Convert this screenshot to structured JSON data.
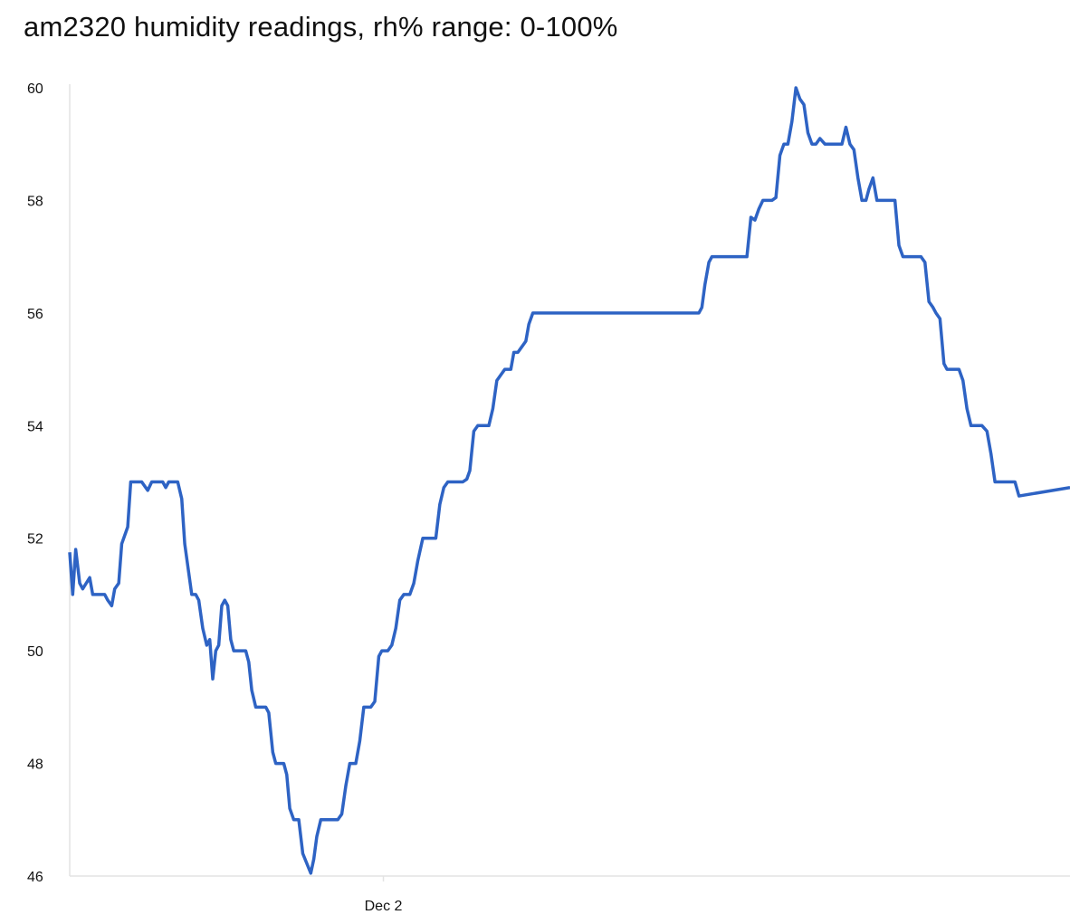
{
  "title": "am2320 humidity readings, rh% range: 0-100%",
  "chart_data": {
    "type": "line",
    "title": "am2320 humidity readings, rh% range: 0-100%",
    "xlabel": "",
    "ylabel": "",
    "ylim": [
      46,
      60
    ],
    "xlim": [
      0,
      1000
    ],
    "y_ticks": [
      46,
      48,
      50,
      52,
      54,
      56,
      58,
      60
    ],
    "x_ticks": [
      {
        "value": 313.6,
        "label": "Dec 2"
      }
    ],
    "grid": false,
    "legend": "none",
    "line_color": "#2e63c4",
    "axis_color": "#e3e3e3",
    "series": [
      {
        "values": [
          [
            0,
            51.75
          ],
          [
            3,
            51.0
          ],
          [
            6,
            51.8
          ],
          [
            10,
            51.2
          ],
          [
            13,
            51.1
          ],
          [
            20,
            51.3
          ],
          [
            23,
            51.0
          ],
          [
            35,
            51.0
          ],
          [
            38,
            50.9
          ],
          [
            42,
            50.8
          ],
          [
            45,
            51.1
          ],
          [
            49,
            51.2
          ],
          [
            52,
            51.9
          ],
          [
            58,
            52.2
          ],
          [
            61,
            53.0
          ],
          [
            72,
            53.0
          ],
          [
            78,
            52.85
          ],
          [
            82,
            53.0
          ],
          [
            93,
            53.0
          ],
          [
            96,
            52.9
          ],
          [
            99,
            53.0
          ],
          [
            108,
            53.0
          ],
          [
            112,
            52.7
          ],
          [
            115,
            51.9
          ],
          [
            122,
            51.0
          ],
          [
            126,
            51.0
          ],
          [
            129,
            50.9
          ],
          [
            133,
            50.4
          ],
          [
            137,
            50.1
          ],
          [
            140,
            50.2
          ],
          [
            143,
            49.5
          ],
          [
            146,
            50.0
          ],
          [
            149,
            50.1
          ],
          [
            152,
            50.8
          ],
          [
            155,
            50.9
          ],
          [
            158,
            50.8
          ],
          [
            161,
            50.2
          ],
          [
            164,
            50.0
          ],
          [
            176,
            50.0
          ],
          [
            179,
            49.8
          ],
          [
            182,
            49.3
          ],
          [
            186,
            49.0
          ],
          [
            196,
            49.0
          ],
          [
            199,
            48.9
          ],
          [
            203,
            48.2
          ],
          [
            206,
            48.0
          ],
          [
            214,
            48.0
          ],
          [
            217,
            47.8
          ],
          [
            220,
            47.2
          ],
          [
            224,
            47.0
          ],
          [
            229,
            47.0
          ],
          [
            233,
            46.4
          ],
          [
            241,
            46.05
          ],
          [
            244,
            46.3
          ],
          [
            247,
            46.7
          ],
          [
            251,
            47.0
          ],
          [
            268,
            47.0
          ],
          [
            272,
            47.1
          ],
          [
            276,
            47.6
          ],
          [
            280,
            48.0
          ],
          [
            286,
            48.0
          ],
          [
            290,
            48.4
          ],
          [
            294,
            49.0
          ],
          [
            301,
            49.0
          ],
          [
            305,
            49.1
          ],
          [
            309,
            49.9
          ],
          [
            312,
            50.0
          ],
          [
            318,
            50.0
          ],
          [
            322,
            50.1
          ],
          [
            326,
            50.4
          ],
          [
            330,
            50.9
          ],
          [
            334,
            51.0
          ],
          [
            340,
            51.0
          ],
          [
            344,
            51.2
          ],
          [
            348,
            51.6
          ],
          [
            353,
            52.0
          ],
          [
            361,
            52.0
          ],
          [
            366,
            52.0
          ],
          [
            370,
            52.6
          ],
          [
            374,
            52.9
          ],
          [
            378,
            53.0
          ],
          [
            393,
            53.0
          ],
          [
            397,
            53.05
          ],
          [
            400,
            53.2
          ],
          [
            404,
            53.9
          ],
          [
            408,
            54.0
          ],
          [
            419,
            54.0
          ],
          [
            423,
            54.3
          ],
          [
            427,
            54.8
          ],
          [
            431,
            54.9
          ],
          [
            435,
            55.0
          ],
          [
            441,
            55.0
          ],
          [
            444,
            55.3
          ],
          [
            448,
            55.3
          ],
          [
            452,
            55.4
          ],
          [
            456,
            55.5
          ],
          [
            459,
            55.8
          ],
          [
            463,
            56.0
          ],
          [
            527,
            56.0
          ],
          [
            572,
            56.0
          ],
          [
            629,
            56.0
          ],
          [
            632,
            56.1
          ],
          [
            635,
            56.5
          ],
          [
            639,
            56.9
          ],
          [
            642,
            57.0
          ],
          [
            654,
            57.0
          ],
          [
            677,
            57.0
          ],
          [
            681,
            57.7
          ],
          [
            685,
            57.65
          ],
          [
            689,
            57.85
          ],
          [
            693,
            58.0
          ],
          [
            702,
            58.0
          ],
          [
            706,
            58.05
          ],
          [
            710,
            58.8
          ],
          [
            714,
            59.0
          ],
          [
            718,
            59.0
          ],
          [
            722,
            59.4
          ],
          [
            726,
            60.0
          ],
          [
            730,
            59.8
          ],
          [
            734,
            59.7
          ],
          [
            738,
            59.2
          ],
          [
            742,
            59.0
          ],
          [
            746,
            59.0
          ],
          [
            750,
            59.1
          ],
          [
            755,
            59.0
          ],
          [
            763,
            59.0
          ],
          [
            772,
            59.0
          ],
          [
            776,
            59.3
          ],
          [
            780,
            59.0
          ],
          [
            784,
            58.9
          ],
          [
            788,
            58.4
          ],
          [
            792,
            58.0
          ],
          [
            796,
            58.0
          ],
          [
            799,
            58.2
          ],
          [
            803,
            58.4
          ],
          [
            807,
            58.0
          ],
          [
            822,
            58.0
          ],
          [
            825,
            58.0
          ],
          [
            829,
            57.2
          ],
          [
            833,
            57.0
          ],
          [
            851,
            57.0
          ],
          [
            855,
            56.9
          ],
          [
            859,
            56.2
          ],
          [
            863,
            56.1
          ],
          [
            866,
            56.0
          ],
          [
            870,
            55.9
          ],
          [
            874,
            55.1
          ],
          [
            877,
            55.0
          ],
          [
            889,
            55.0
          ],
          [
            893,
            54.8
          ],
          [
            897,
            54.3
          ],
          [
            901,
            54.0
          ],
          [
            912,
            54.0
          ],
          [
            917,
            53.9
          ],
          [
            921,
            53.5
          ],
          [
            925,
            53.0
          ],
          [
            929,
            53.0
          ],
          [
            945,
            53.0
          ],
          [
            949,
            52.75
          ],
          [
            1000,
            52.9
          ]
        ]
      }
    ]
  }
}
